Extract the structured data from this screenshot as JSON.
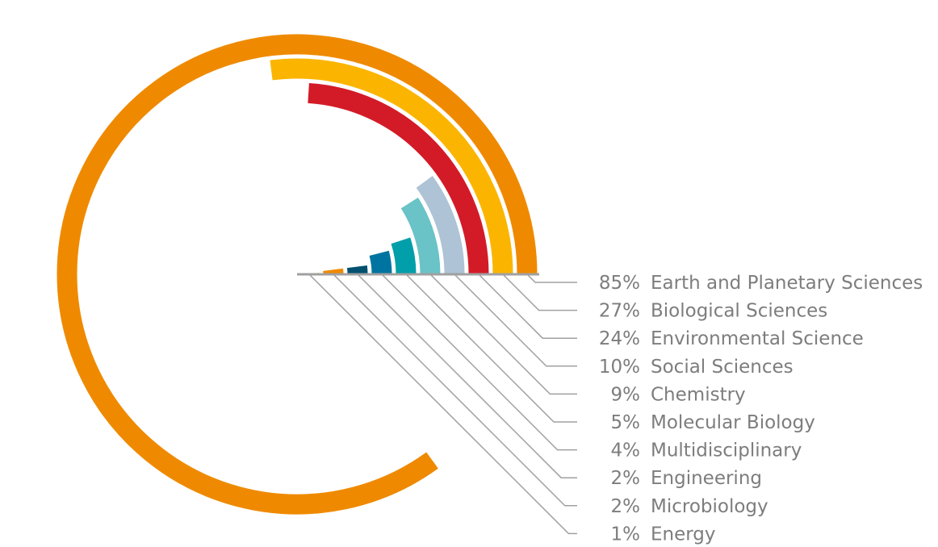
{
  "chart_data": {
    "type": "radial-bar",
    "categories": [
      "Earth and Planetary Sciences",
      "Biological Sciences",
      "Environmental Science",
      "Social Sciences",
      "Chemistry",
      "Molecular Biology",
      "Multidisciplinary",
      "Engineering",
      "Microbiology",
      "Energy"
    ],
    "values": [
      85,
      27,
      24,
      10,
      9,
      5,
      4,
      2,
      2,
      1
    ],
    "value_labels": [
      "85%",
      "27%",
      "24%",
      "10%",
      "9%",
      "5%",
      "4%",
      "2%",
      "2%",
      "1%"
    ],
    "colors": [
      "#ef8a00",
      "#fbb500",
      "#d31b27",
      "#aec3d5",
      "#69c3c7",
      "#009fa9",
      "#0074a0",
      "#00506f",
      "#ef8a00",
      "#fbb500"
    ],
    "max_value": 100,
    "unit": "%",
    "legend_position": "right"
  }
}
